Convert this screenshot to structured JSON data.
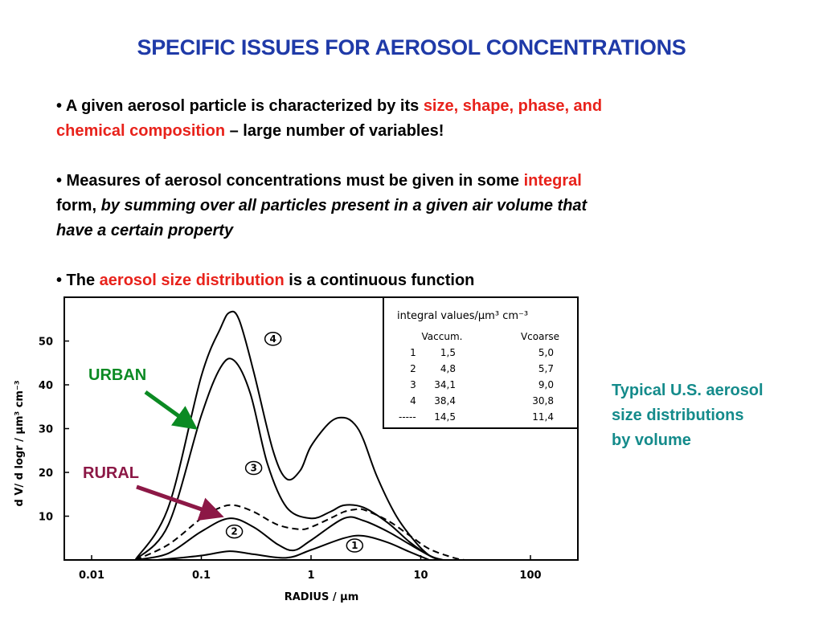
{
  "slide": {
    "title": "SPECIFIC ISSUES FOR AEROSOL CONCENTRATIONS",
    "bullet1": {
      "lead": "• A given aerosol particle is characterized by its ",
      "red1": "size, shape, phase, and",
      "red2": "chemical composition",
      "tail": " – large number of variables!"
    },
    "bullet2": {
      "lead": "• Measures of aerosol concentrations must be given in some ",
      "red": "integral",
      "mid": "form, ",
      "italic1": "by summing over all particles present in a given air volume that",
      "italic2": "have a certain property"
    },
    "bullet3": {
      "lead": "• The ",
      "red": "aerosol size distribution",
      "tail": " is a continuous function"
    },
    "side_note": [
      "Typical U.S. aerosol",
      "size distributions",
      "by volume"
    ],
    "urban_label": "URBAN",
    "rural_label": "RURAL"
  },
  "colors": {
    "title": "#1f3aa8",
    "highlight": "#e8221b",
    "side_note": "#148b8b",
    "urban": "#0b8a23",
    "rural": "#8c1846"
  },
  "chart_data": {
    "type": "line",
    "xlabel": "RADIUS  / µm",
    "ylabel": "d V/ d logr  / µm³ cm⁻³",
    "x_scale": "log",
    "xlim": [
      0.01,
      200
    ],
    "ylim": [
      0,
      60
    ],
    "x_ticks": [
      "0.01",
      "0.1",
      "1",
      "10",
      "100"
    ],
    "y_ticks": [
      "10",
      "20",
      "30",
      "40",
      "50"
    ],
    "series": [
      {
        "name": "1",
        "style": "solid",
        "x": [
          0.04,
          0.1,
          0.18,
          0.3,
          0.6,
          1.0,
          2.0,
          3.0,
          5.0,
          8.0,
          12.0
        ],
        "y": [
          0,
          1.0,
          2.0,
          1.3,
          0.5,
          2.3,
          5.0,
          5.5,
          4.0,
          1.8,
          0
        ]
      },
      {
        "name": "2",
        "style": "solid",
        "x": [
          0.025,
          0.05,
          0.1,
          0.18,
          0.3,
          0.5,
          0.7,
          1.0,
          2.0,
          3.0,
          5.0,
          8.0,
          12.0,
          15.0
        ],
        "y": [
          0,
          1.5,
          6.5,
          9.5,
          7.5,
          3.5,
          2.2,
          4.5,
          9.5,
          9.0,
          6.5,
          3.5,
          1.0,
          0
        ]
      },
      {
        "name": "3",
        "style": "solid",
        "x": [
          0.025,
          0.05,
          0.1,
          0.15,
          0.2,
          0.28,
          0.4,
          0.6,
          1.0,
          1.5,
          2.0,
          3.0,
          5.0,
          8.0,
          12.0,
          16.0
        ],
        "y": [
          0,
          8.0,
          33.0,
          44.0,
          45.5,
          38.0,
          22.0,
          12.0,
          9.5,
          11.0,
          12.5,
          12.0,
          8.5,
          4.0,
          1.0,
          0
        ]
      },
      {
        "name": "4",
        "style": "solid",
        "x": [
          0.025,
          0.05,
          0.1,
          0.15,
          0.18,
          0.22,
          0.3,
          0.45,
          0.6,
          0.8,
          1.0,
          1.5,
          2.0,
          2.5,
          3.0,
          4.0,
          6.0,
          9.0,
          12.0,
          15.0
        ],
        "y": [
          0,
          12.0,
          42.0,
          53.0,
          56.5,
          55.0,
          43.0,
          25.0,
          18.5,
          20.5,
          26.0,
          31.5,
          32.5,
          31.0,
          27.5,
          19.0,
          10.0,
          4.0,
          1.0,
          0
        ]
      },
      {
        "name": "----",
        "style": "dashed",
        "x": [
          0.025,
          0.05,
          0.1,
          0.15,
          0.2,
          0.3,
          0.5,
          0.8,
          1.0,
          1.5,
          2.0,
          2.5,
          3.0,
          5.0,
          8.0,
          12.0,
          20.0,
          25.0
        ],
        "y": [
          0,
          3.5,
          9.5,
          12.0,
          12.5,
          11.0,
          8.0,
          7.0,
          7.5,
          9.5,
          11.0,
          11.5,
          11.5,
          9.0,
          5.5,
          2.5,
          0.5,
          0
        ]
      }
    ],
    "annotations": [
      "4",
      "3",
      "2",
      "1"
    ],
    "integral_table": {
      "title": "integral  values/µm³ cm⁻³",
      "columns": [
        "",
        "Vaccum.",
        "Vcoarse"
      ],
      "rows": [
        [
          "1",
          "1,5",
          "5,0"
        ],
        [
          "2",
          "4,8",
          "5,7"
        ],
        [
          "3",
          "34,1",
          "9,0"
        ],
        [
          "4",
          "38,4",
          "30,8"
        ],
        [
          "-----",
          "14,5",
          "11,4"
        ]
      ]
    }
  }
}
